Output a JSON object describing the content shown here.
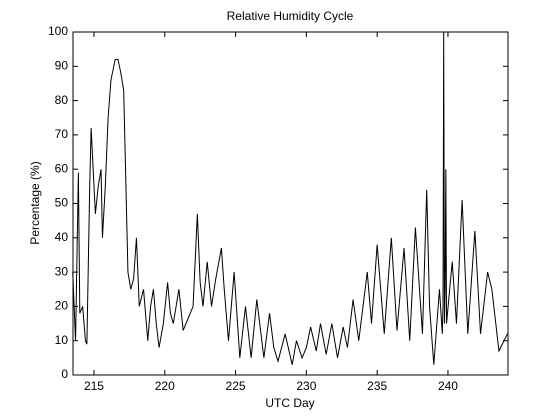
{
  "chart_data": {
    "type": "line",
    "title": "Relative Humidity Cycle",
    "x_label": "UTC Day",
    "y_label": "Percentage (%)",
    "x": [
      213.5,
      213.7,
      213.9,
      214.0,
      214.2,
      214.4,
      214.5,
      214.7,
      214.8,
      215.1,
      215.3,
      215.5,
      215.6,
      215.8,
      216.0,
      216.2,
      216.4,
      216.5,
      216.7,
      216.9,
      217.1,
      217.4,
      217.6,
      217.8,
      218.0,
      218.2,
      218.5,
      218.8,
      219.0,
      219.2,
      219.4,
      219.6,
      219.9,
      220.2,
      220.4,
      220.6,
      220.8,
      221.0,
      221.3,
      221.6,
      222.0,
      222.3,
      222.5,
      222.7,
      223.0,
      223.3,
      223.6,
      224.0,
      224.2,
      224.5,
      224.9,
      225.3,
      225.7,
      226.1,
      226.5,
      227.0,
      227.4,
      227.7,
      228.0,
      228.5,
      229.0,
      229.3,
      229.7,
      230.0,
      230.3,
      230.7,
      231.0,
      231.4,
      231.8,
      232.2,
      232.6,
      232.9,
      233.3,
      233.7,
      234.0,
      234.3,
      234.6,
      235.0,
      235.5,
      236.0,
      236.4,
      236.9,
      237.3,
      237.7,
      238.2,
      238.5,
      238.7,
      239.0,
      239.4,
      239.6,
      239.65,
      239.7,
      239.75,
      239.8,
      239.85,
      239.9,
      240.3,
      240.6,
      241.0,
      241.4,
      241.9,
      242.3,
      242.8,
      243.1,
      243.6,
      244.2
    ],
    "values": [
      30,
      10,
      59,
      18,
      20,
      10,
      9,
      55,
      72,
      47,
      55,
      60,
      40,
      55,
      75,
      86,
      90,
      92,
      92,
      88,
      83,
      30,
      25,
      28,
      40,
      20,
      25,
      10,
      20,
      25,
      15,
      8,
      15,
      27,
      18,
      15,
      20,
      25,
      13,
      16,
      20,
      47,
      27,
      20,
      33,
      20,
      28,
      37,
      25,
      10,
      30,
      5,
      20,
      5,
      22,
      5,
      18,
      8,
      4,
      12,
      3,
      10,
      5,
      8,
      14,
      7,
      15,
      6,
      15,
      5,
      14,
      8,
      22,
      10,
      20,
      30,
      15,
      38,
      12,
      40,
      13,
      37,
      10,
      43,
      12,
      54,
      20,
      3,
      25,
      12,
      20,
      100,
      15,
      25,
      60,
      15,
      33,
      15,
      51,
      12,
      42,
      12,
      30,
      25,
      7,
      12
    ],
    "color": "#000000",
    "xlim": [
      213.52,
      244.24
    ],
    "xticks": [
      215,
      220,
      225,
      230,
      235,
      240
    ],
    "ylim": [
      0,
      100
    ],
    "yticks": [
      0,
      10,
      20,
      30,
      40,
      50,
      60,
      70,
      80,
      90,
      100
    ]
  }
}
